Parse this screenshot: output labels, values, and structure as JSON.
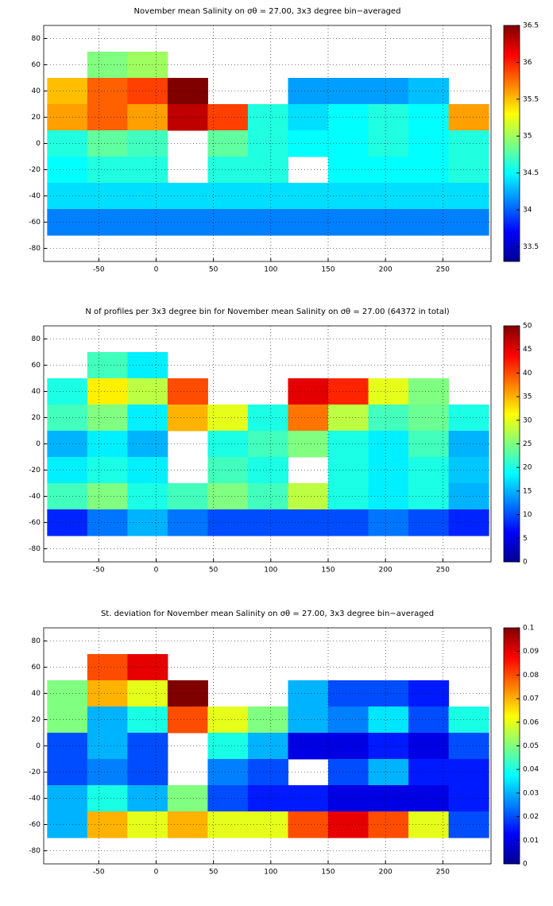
{
  "chart_data": [
    {
      "type": "heatmap",
      "title": "November mean Salinity on σθ = 27.00, 3x3 degree bin−averaged",
      "colormap": "jet",
      "grid": true,
      "x": [
        -77.5,
        -42.5,
        -7.5,
        27.5,
        62.5,
        97.5,
        132.5,
        167.5,
        202.5,
        237.5,
        272.5
      ],
      "y": [
        60,
        40,
        20,
        0,
        -20,
        -40,
        -60
      ],
      "values": [
        [
          null,
          34.9,
          35.0,
          null,
          null,
          null,
          null,
          null,
          null,
          null,
          null
        ],
        [
          35.5,
          35.8,
          35.9,
          36.5,
          null,
          null,
          34.2,
          34.2,
          34.2,
          34.3,
          null
        ],
        [
          35.6,
          35.8,
          35.6,
          36.3,
          35.9,
          34.6,
          34.4,
          34.5,
          34.6,
          34.5,
          35.6
        ],
        [
          34.6,
          34.8,
          34.7,
          null,
          34.8,
          34.6,
          34.5,
          34.5,
          34.6,
          34.5,
          34.6
        ],
        [
          34.5,
          34.6,
          34.6,
          null,
          34.6,
          34.6,
          null,
          34.5,
          34.5,
          34.5,
          34.6
        ],
        [
          34.4,
          34.4,
          34.4,
          34.4,
          34.4,
          34.4,
          34.4,
          34.4,
          34.4,
          34.4,
          34.4
        ],
        [
          34.1,
          34.1,
          34.1,
          34.1,
          34.1,
          34.1,
          34.1,
          34.1,
          34.1,
          34.1,
          34.1
        ]
      ],
      "xlim": [
        -98,
        292
      ],
      "ylim": [
        -90,
        90
      ],
      "xticks": [
        -50,
        0,
        50,
        100,
        150,
        200,
        250
      ],
      "yticks": [
        -80,
        -60,
        -40,
        -20,
        0,
        20,
        40,
        60,
        80
      ],
      "clim": [
        33.3,
        36.5
      ],
      "cticks": [
        33.5,
        34,
        34.5,
        35,
        35.5,
        36,
        36.5
      ]
    },
    {
      "type": "heatmap",
      "title": "N of profiles per 3x3 degree bin for November mean Salinity on σθ = 27.00 (64372 in total)",
      "colormap": "jet",
      "grid": true,
      "x": [
        -77.5,
        -42.5,
        -7.5,
        27.5,
        62.5,
        97.5,
        132.5,
        167.5,
        202.5,
        237.5,
        272.5
      ],
      "y": [
        60,
        40,
        20,
        0,
        -20,
        -40,
        -60
      ],
      "values": [
        [
          null,
          22,
          18,
          null,
          null,
          null,
          null,
          null,
          null,
          null,
          null
        ],
        [
          20,
          32,
          28,
          40,
          null,
          null,
          45,
          42,
          30,
          25,
          null
        ],
        [
          22,
          25,
          18,
          35,
          30,
          20,
          38,
          28,
          22,
          24,
          20
        ],
        [
          15,
          18,
          15,
          null,
          20,
          22,
          25,
          20,
          18,
          22,
          15
        ],
        [
          18,
          20,
          18,
          null,
          22,
          20,
          null,
          20,
          18,
          20,
          16
        ],
        [
          22,
          25,
          20,
          22,
          25,
          22,
          28,
          20,
          18,
          20,
          15
        ],
        [
          8,
          12,
          15,
          12,
          10,
          10,
          10,
          10,
          12,
          10,
          8
        ]
      ],
      "xlim": [
        -98,
        292
      ],
      "ylim": [
        -90,
        90
      ],
      "xticks": [
        -50,
        0,
        50,
        100,
        150,
        200,
        250
      ],
      "yticks": [
        -80,
        -60,
        -40,
        -20,
        0,
        20,
        40,
        60,
        80
      ],
      "clim": [
        0,
        50
      ],
      "cticks": [
        0,
        5,
        10,
        15,
        20,
        25,
        30,
        35,
        40,
        45,
        50
      ]
    },
    {
      "type": "heatmap",
      "title": "St. deviation for November mean Salinity on σθ = 27.00, 3x3 degree bin−averaged",
      "colormap": "jet",
      "grid": true,
      "x": [
        -77.5,
        -42.5,
        -7.5,
        27.5,
        62.5,
        97.5,
        132.5,
        167.5,
        202.5,
        237.5,
        272.5
      ],
      "y": [
        60,
        40,
        20,
        0,
        -20,
        -40,
        -60
      ],
      "values": [
        [
          null,
          0.08,
          0.09,
          null,
          null,
          null,
          null,
          null,
          null,
          null,
          null
        ],
        [
          0.05,
          0.07,
          0.06,
          0.1,
          null,
          null,
          0.03,
          0.02,
          0.02,
          0.015,
          null
        ],
        [
          0.05,
          0.03,
          0.04,
          0.08,
          0.06,
          0.05,
          0.03,
          0.025,
          0.035,
          0.02,
          0.04
        ],
        [
          0.02,
          0.03,
          0.02,
          null,
          0.04,
          0.03,
          0.01,
          0.01,
          0.015,
          0.01,
          0.02
        ],
        [
          0.02,
          0.025,
          0.02,
          null,
          0.025,
          0.02,
          null,
          0.02,
          0.03,
          0.015,
          0.015
        ],
        [
          0.03,
          0.04,
          0.03,
          0.05,
          0.02,
          0.015,
          0.015,
          0.01,
          0.01,
          0.01,
          0.015
        ],
        [
          0.03,
          0.07,
          0.06,
          0.07,
          0.06,
          0.06,
          0.08,
          0.09,
          0.08,
          0.06,
          0.02
        ]
      ],
      "xlim": [
        -98,
        292
      ],
      "ylim": [
        -90,
        90
      ],
      "xticks": [
        -50,
        0,
        50,
        100,
        150,
        200,
        250
      ],
      "yticks": [
        -80,
        -60,
        -40,
        -20,
        0,
        20,
        40,
        60,
        80
      ],
      "clim": [
        0,
        0.1
      ],
      "cticks": [
        0,
        0.01,
        0.02,
        0.03,
        0.04,
        0.05,
        0.06,
        0.07,
        0.08,
        0.09,
        0.1
      ]
    }
  ]
}
